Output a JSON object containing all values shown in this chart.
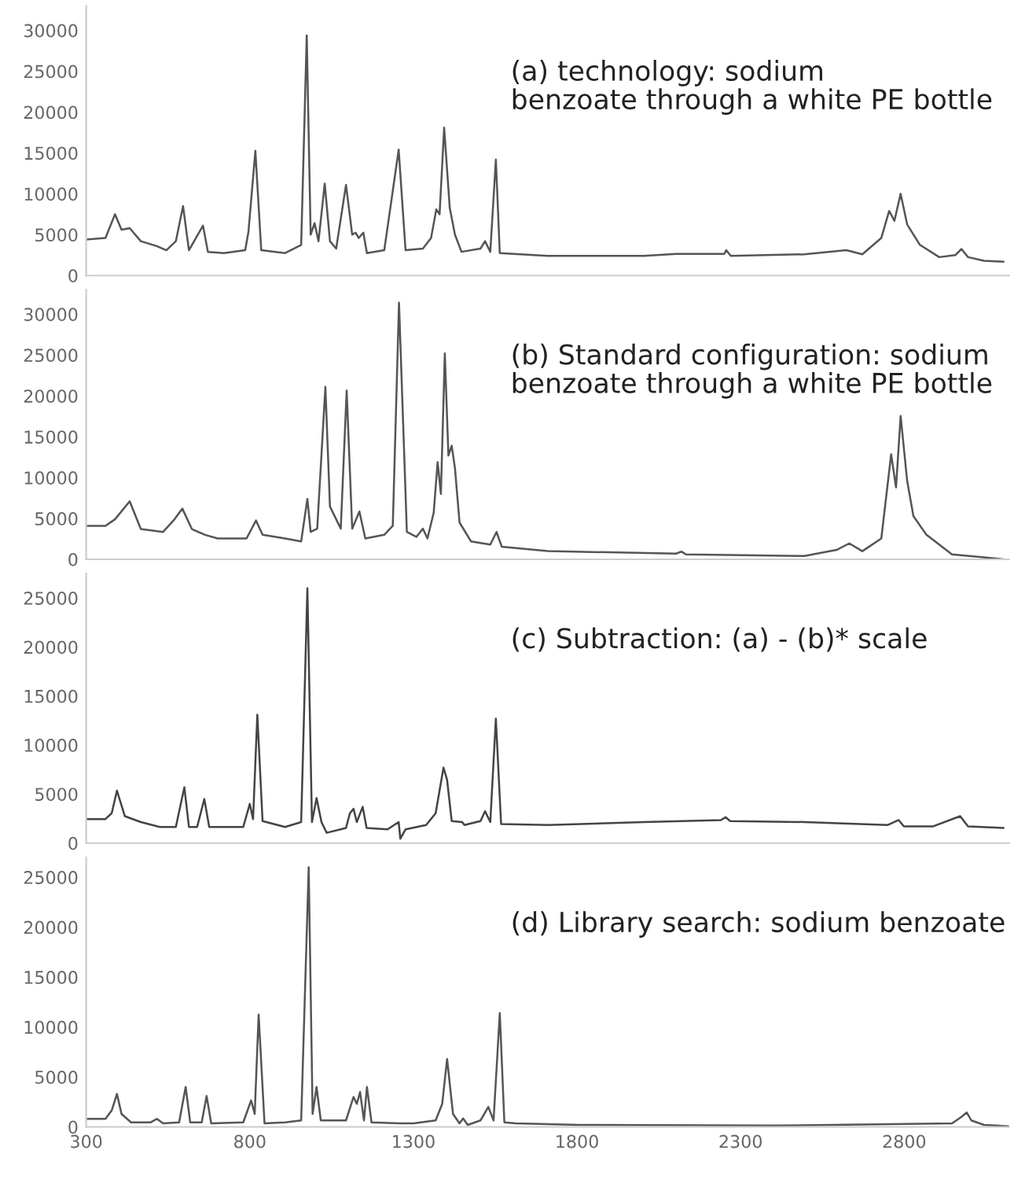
{
  "chart_data": [
    {
      "type": "line",
      "annotations": [
        "(a) technology: sodium\nbenzoate through a white PE bottle"
      ],
      "xlim": [
        300,
        3120
      ],
      "xticks": [
        300,
        800,
        1300,
        1800,
        2300,
        2800
      ],
      "ylim": [
        0,
        33000
      ],
      "yticks": [
        0,
        5000,
        10000,
        15000,
        20000,
        25000,
        30000
      ],
      "tick_labels": "y",
      "grid": false,
      "legend": false,
      "series": [
        {
          "color": "#555555",
          "x": [
            300,
            359,
            388,
            408,
            433,
            467,
            516,
            545,
            574,
            596,
            614,
            657,
            672,
            721,
            786,
            796,
            817,
            835,
            908,
            957,
            974,
            986,
            998,
            1010,
            1029,
            1045,
            1064,
            1094,
            1113,
            1123,
            1133,
            1147,
            1158,
            1211,
            1255,
            1276,
            1329,
            1354,
            1370,
            1380,
            1394,
            1411,
            1427,
            1447,
            1505,
            1519,
            1535,
            1552,
            1564,
            1711,
            2005,
            2103,
            2250,
            2256,
            2270,
            2495,
            2623,
            2672,
            2730,
            2754,
            2770,
            2789,
            2809,
            2848,
            2907,
            2956,
            2975,
            2995,
            3044,
            3103
          ],
          "values": [
            4400,
            4600,
            7500,
            5600,
            5800,
            4200,
            3600,
            3100,
            4200,
            8500,
            3100,
            6100,
            2900,
            2750,
            3100,
            5400,
            15250,
            3100,
            2750,
            3750,
            29400,
            5000,
            6400,
            4200,
            11250,
            4200,
            3300,
            11100,
            5000,
            5250,
            4600,
            5250,
            2750,
            3100,
            15400,
            3100,
            3300,
            4600,
            8100,
            7500,
            18100,
            8300,
            5000,
            2900,
            3300,
            4200,
            2900,
            14200,
            2750,
            2400,
            2400,
            2650,
            2650,
            3100,
            2400,
            2600,
            3100,
            2600,
            4600,
            7900,
            6700,
            10000,
            6250,
            3750,
            2250,
            2500,
            3250,
            2250,
            1800,
            1700
          ]
        }
      ]
    },
    {
      "type": "line",
      "annotations": [
        "(b) Standard configuration: sodium\nbenzoate through a white PE bottle"
      ],
      "xlim": [
        300,
        3120
      ],
      "xticks": [
        300,
        800,
        1300,
        1800,
        2300,
        2800
      ],
      "ylim": [
        0,
        33000
      ],
      "yticks": [
        0,
        5000,
        10000,
        15000,
        20000,
        25000,
        30000
      ],
      "tick_labels": "y",
      "grid": false,
      "legend": false,
      "series": [
        {
          "color": "#555555",
          "x": [
            300,
            359,
            388,
            433,
            467,
            535,
            570,
            594,
            623,
            663,
            702,
            790,
            819,
            839,
            908,
            957,
            976,
            986,
            1006,
            1031,
            1045,
            1064,
            1078,
            1096,
            1113,
            1135,
            1153,
            1211,
            1237,
            1256,
            1280,
            1309,
            1329,
            1343,
            1362,
            1374,
            1384,
            1396,
            1407,
            1417,
            1427,
            1441,
            1476,
            1535,
            1554,
            1570,
            1711,
            2103,
            2119,
            2133,
            2495,
            2593,
            2632,
            2672,
            2730,
            2760,
            2775,
            2789,
            2809,
            2828,
            2868,
            2946,
            3044,
            3103
          ],
          "values": [
            4100,
            4100,
            4900,
            7100,
            3700,
            3350,
            4900,
            6200,
            3700,
            3000,
            2550,
            2550,
            4750,
            3000,
            2550,
            2200,
            7400,
            3350,
            3750,
            21100,
            6450,
            4900,
            3750,
            20650,
            3750,
            5850,
            2550,
            3000,
            4100,
            31400,
            3350,
            2750,
            3750,
            2550,
            5700,
            11900,
            8000,
            25200,
            12700,
            13900,
            11150,
            4500,
            2200,
            1800,
            3350,
            1550,
            1000,
            700,
            950,
            600,
            400,
            1150,
            1950,
            1000,
            2550,
            12850,
            8800,
            17550,
            9600,
            5300,
            3000,
            600,
            250,
            0
          ]
        }
      ]
    },
    {
      "type": "line",
      "annotations": [
        "(c) Subtraction: (a) - (b)* scale"
      ],
      "xlim": [
        300,
        3120
      ],
      "xticks": [
        300,
        800,
        1300,
        1800,
        2300,
        2800
      ],
      "ylim": [
        0,
        27500
      ],
      "yticks": [
        0,
        5000,
        10000,
        15000,
        20000,
        25000
      ],
      "tick_labels": "y",
      "grid": false,
      "legend": false,
      "series": [
        {
          "color": "#444444",
          "x": [
            300,
            359,
            378,
            394,
            418,
            467,
            525,
            574,
            600,
            614,
            639,
            661,
            676,
            780,
            800,
            810,
            823,
            839,
            908,
            957,
            976,
            990,
            1004,
            1019,
            1035,
            1094,
            1106,
            1117,
            1127,
            1145,
            1157,
            1221,
            1255,
            1260,
            1276,
            1339,
            1368,
            1392,
            1403,
            1417,
            1449,
            1456,
            1505,
            1519,
            1535,
            1552,
            1568,
            1711,
            2005,
            2240,
            2254,
            2268,
            2495,
            2750,
            2783,
            2799,
            2887,
            2971,
            2995,
            3103
          ],
          "values": [
            2450,
            2450,
            3050,
            5350,
            2750,
            2150,
            1650,
            1650,
            5700,
            1650,
            1650,
            4500,
            1650,
            1650,
            4000,
            2450,
            13100,
            2250,
            1650,
            2150,
            26000,
            2150,
            4600,
            2150,
            1050,
            1550,
            3050,
            3500,
            2150,
            3700,
            1550,
            1400,
            2150,
            450,
            1400,
            1850,
            3050,
            7700,
            6450,
            2250,
            2150,
            1850,
            2250,
            3250,
            2150,
            12700,
            1950,
            1850,
            2150,
            2350,
            2650,
            2250,
            2150,
            1850,
            2350,
            1700,
            1700,
            2750,
            1700,
            1550
          ]
        }
      ]
    },
    {
      "type": "line",
      "annotations": [
        "(d) Library search: sodium benzoate"
      ],
      "xlim": [
        300,
        3120
      ],
      "xticks": [
        300,
        800,
        1300,
        1800,
        2300,
        2800
      ],
      "ylim": [
        0,
        27000
      ],
      "yticks": [
        0,
        5000,
        10000,
        15000,
        20000,
        25000
      ],
      "grid": false,
      "legend": false,
      "series": [
        {
          "color": "#555555",
          "x": [
            300,
            359,
            378,
            394,
            408,
            437,
            496,
            516,
            535,
            584,
            604,
            618,
            653,
            668,
            682,
            780,
            804,
            815,
            827,
            845,
            908,
            957,
            980,
            992,
            1004,
            1017,
            1094,
            1117,
            1127,
            1137,
            1149,
            1158,
            1172,
            1260,
            1300,
            1368,
            1388,
            1403,
            1421,
            1441,
            1452,
            1466,
            1505,
            1529,
            1545,
            1564,
            1578,
            1613,
            1809,
            2397,
            2946,
            2975,
            2991,
            3005,
            3044,
            3118
          ],
          "values": [
            800,
            800,
            1650,
            3300,
            1300,
            450,
            450,
            800,
            350,
            450,
            4000,
            450,
            450,
            3100,
            350,
            450,
            2650,
            1300,
            11250,
            350,
            450,
            650,
            26000,
            1300,
            4000,
            650,
            650,
            3000,
            2300,
            3500,
            650,
            4000,
            450,
            350,
            350,
            650,
            2300,
            6800,
            1300,
            350,
            850,
            200,
            650,
            2000,
            650,
            11400,
            450,
            350,
            200,
            130,
            350,
            1000,
            1450,
            650,
            200,
            70
          ]
        }
      ]
    }
  ]
}
